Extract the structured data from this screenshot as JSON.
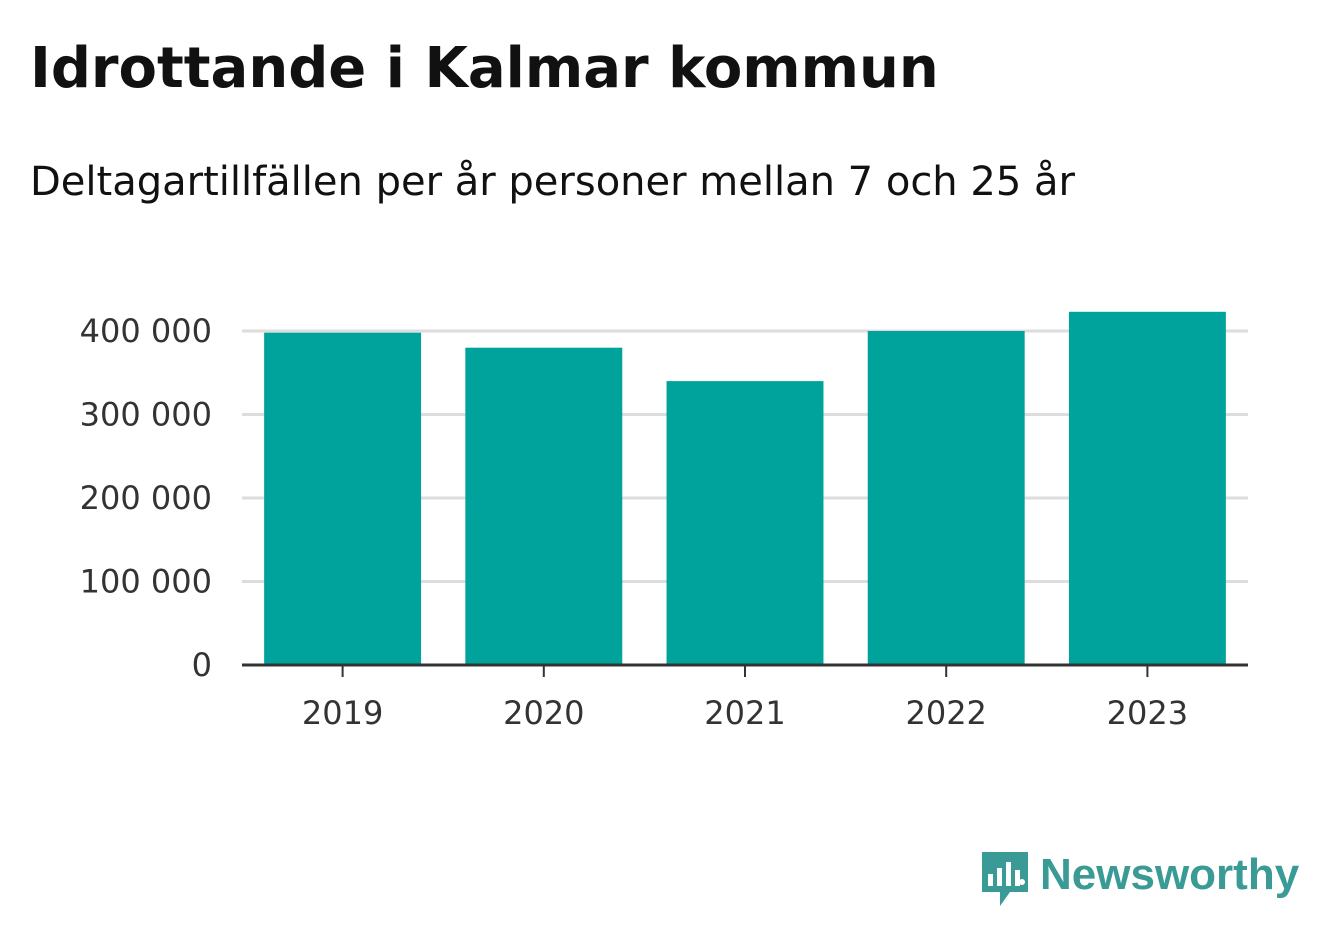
{
  "title": "Idrottande i Kalmar kommun",
  "subtitle": "Deltagartillfällen per år personer mellan 7 och 25 år",
  "brand": {
    "name": "Newsworthy",
    "color": "#3a9a95",
    "icon": "newsworthy-logo-icon"
  },
  "colors": {
    "bar": "#00a39b",
    "grid": "#dddddd",
    "axis": "#333333"
  },
  "chart_data": {
    "type": "bar",
    "title": "Idrottande i Kalmar kommun",
    "subtitle": "Deltagartillfällen per år personer mellan 7 och 25 år",
    "categories": [
      "2019",
      "2020",
      "2021",
      "2022",
      "2023"
    ],
    "values": [
      398000,
      380000,
      340000,
      400000,
      423000
    ],
    "ylim": [
      0,
      400000
    ],
    "yticks": [
      0,
      100000,
      200000,
      300000,
      400000
    ],
    "ytick_labels": [
      "0",
      "100 000",
      "200 000",
      "300 000",
      "400 000"
    ],
    "xlabel": "",
    "ylabel": "",
    "grid": true,
    "legend": "none"
  }
}
